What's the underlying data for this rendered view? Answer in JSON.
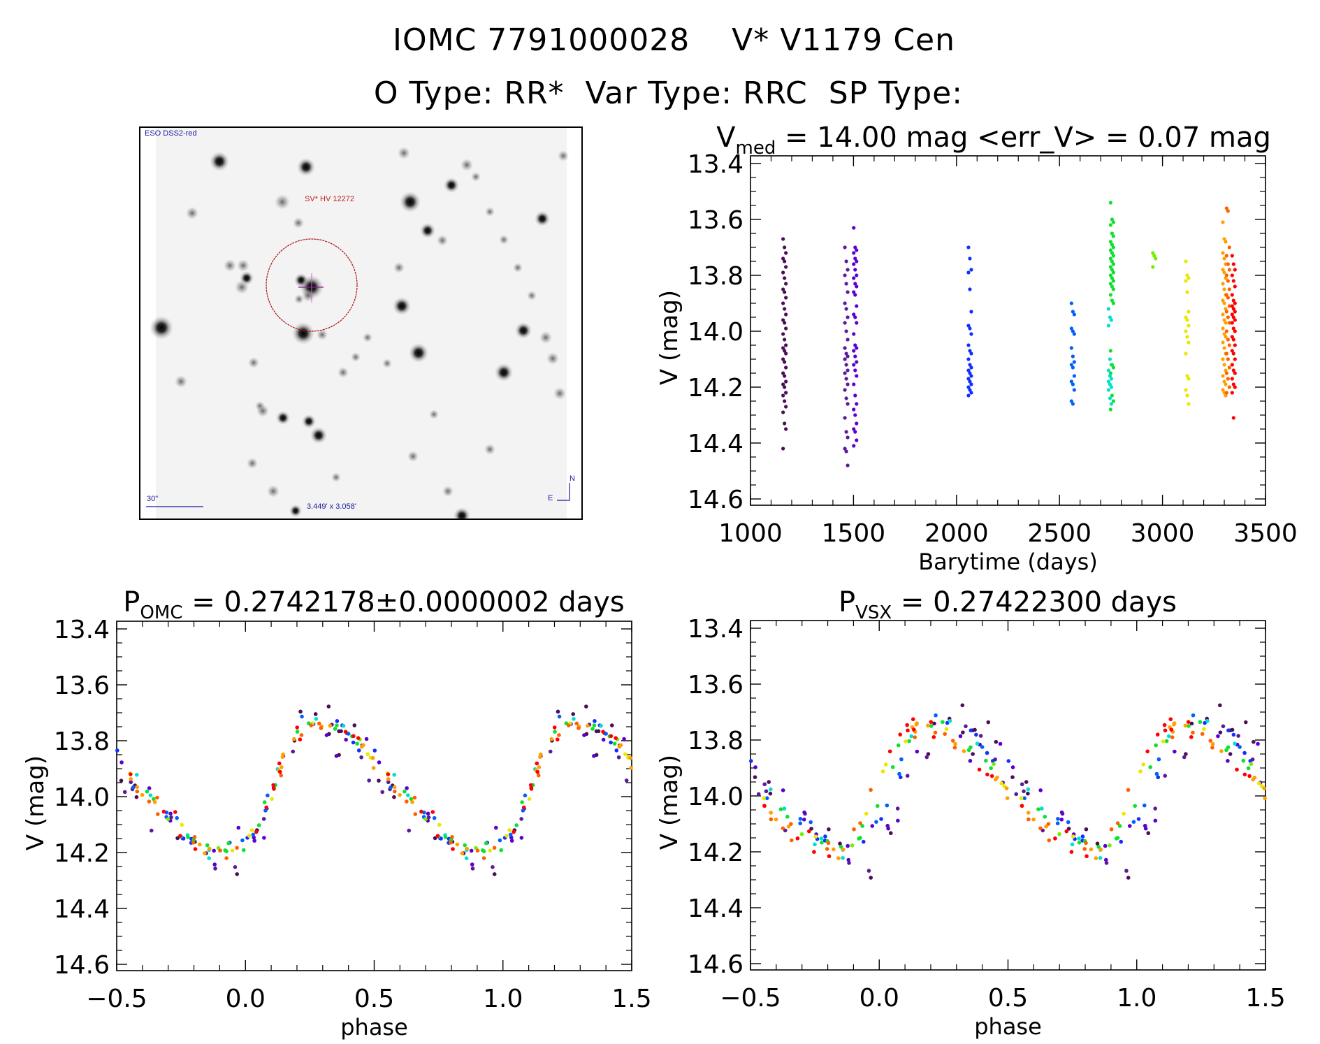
{
  "header": {
    "line1": "IOMC 7791000028    V* V1179 Cen",
    "line2": "O Type: RR*  Var Type: RRC  SP Type:"
  },
  "finder_chart": {
    "survey_label": "ESO DSS2-red",
    "object_label": "SV* HV 12272",
    "scale_label": "30\"",
    "fov_label": "3.449' x 3.058'",
    "north_label": "N",
    "east_label": "E",
    "circle_color": "#b01010",
    "label_color": "#1a1aa0"
  },
  "season_colors": [
    "#4a0f55",
    "#5b1a9a",
    "#5a00d0",
    "#1030ff",
    "#0060ff",
    "#00e0d0",
    "#10e030",
    "#70f000",
    "#e8e800",
    "#ffa000",
    "#ff6000",
    "#ff0000"
  ],
  "chart_data": [
    {
      "id": "lightcurve",
      "type": "scatter",
      "title_main": "V",
      "title_sub": "med",
      "title_rest": " = 14.00 mag <err_V> = 0.07 mag",
      "xlabel": "Barytime (days)",
      "ylabel": "V (mag)",
      "xlim": [
        1000,
        3500
      ],
      "ylim": [
        13.3725,
        14.6225
      ],
      "y_inverted": true,
      "xticks": [
        1000,
        1500,
        2000,
        2500,
        3000,
        3500
      ],
      "xtick_labels": [
        "1000",
        "1500",
        "2000",
        "2500",
        "3000",
        "3500"
      ],
      "yticks": [
        13.4,
        13.6,
        13.8,
        14.0,
        14.2,
        14.4,
        14.6
      ],
      "ytick_labels": [
        "13.4",
        "13.6",
        "13.8",
        "14.0",
        "14.2",
        "14.4",
        "14.6"
      ],
      "seasons": [
        {
          "t": 1165,
          "color_index": 0,
          "mags": [
            13.67,
            13.7,
            13.72,
            13.74,
            13.75,
            13.77,
            13.79,
            13.81,
            13.83,
            13.85,
            13.86,
            13.88,
            13.9,
            13.92,
            13.94,
            13.96,
            13.97,
            13.99,
            14.01,
            14.03,
            14.05,
            14.06,
            14.07,
            14.08,
            14.1,
            14.11,
            14.13,
            14.15,
            14.16,
            14.18,
            14.19,
            14.2,
            14.22,
            14.23,
            14.25,
            14.27,
            14.29,
            14.33,
            14.35,
            14.42
          ]
        },
        {
          "t": 1465,
          "color_index": 1,
          "mags": [
            13.7,
            13.75,
            13.78,
            13.8,
            13.83,
            13.86,
            13.9,
            13.92,
            13.95,
            13.97,
            14.0,
            14.03,
            14.06,
            14.08,
            14.09,
            14.1,
            14.12,
            14.14,
            14.15,
            14.17,
            14.19,
            14.21,
            14.24,
            14.26,
            14.31,
            14.36,
            14.38,
            14.42,
            14.43,
            14.48
          ]
        },
        {
          "t": 1508,
          "color_index": 2,
          "mags": [
            13.63,
            13.7,
            13.71,
            13.72,
            13.74,
            13.75,
            13.76,
            13.78,
            13.8,
            13.81,
            13.83,
            13.84,
            13.86,
            13.87,
            13.91,
            13.94,
            13.95,
            13.97,
            14.01,
            14.05,
            14.06,
            14.07,
            14.09,
            14.11,
            14.12,
            14.14,
            14.16,
            14.19,
            14.23,
            14.26,
            14.28,
            14.3,
            14.33,
            14.35,
            14.36,
            14.39,
            14.41
          ]
        },
        {
          "t": 2065,
          "color_index": 3,
          "mags": [
            13.7,
            13.74,
            13.78,
            13.79,
            13.85,
            13.93,
            13.98,
            13.99,
            14.01,
            14.05,
            14.07,
            14.08,
            14.1,
            14.12,
            14.13,
            14.14,
            14.15,
            14.16,
            14.17,
            14.18,
            14.19,
            14.2,
            14.21,
            14.22,
            14.23
          ]
        },
        {
          "t": 2565,
          "color_index": 4,
          "mags": [
            13.9,
            13.93,
            13.94,
            13.99,
            14.0,
            14.01,
            14.06,
            14.09,
            14.11,
            14.12,
            14.13,
            14.16,
            14.18,
            14.19,
            14.21,
            14.25,
            14.26
          ]
        },
        {
          "t": 2745,
          "color_index": 5,
          "mags": [
            13.92,
            13.95,
            13.96,
            13.98,
            14.1,
            14.12,
            14.14,
            14.16,
            14.17,
            14.18,
            14.19,
            14.2,
            14.21,
            14.24,
            14.26
          ]
        },
        {
          "t": 2755,
          "color_index": 6,
          "mags": [
            13.54,
            13.6,
            13.61,
            13.62,
            13.65,
            13.66,
            13.68,
            13.69,
            13.7,
            13.71,
            13.72,
            13.73,
            13.74,
            13.75,
            13.76,
            13.77,
            13.78,
            13.79,
            13.8,
            13.81,
            13.82,
            13.83,
            13.84,
            13.85,
            13.87,
            13.89,
            13.9,
            14.07,
            14.12,
            14.13,
            14.15,
            14.23,
            14.25,
            14.28
          ]
        },
        {
          "t": 2960,
          "color_index": 7,
          "mags": [
            13.72,
            13.73,
            13.74,
            13.77
          ]
        },
        {
          "t": 3120,
          "color_index": 8,
          "mags": [
            13.75,
            13.8,
            13.81,
            13.82,
            13.86,
            13.93,
            13.95,
            13.96,
            13.98,
            14.0,
            14.02,
            14.04,
            14.08,
            14.16,
            14.17,
            14.21,
            14.23,
            14.26
          ]
        },
        {
          "t": 3300,
          "color_index": 9,
          "mags": [
            13.61,
            13.67,
            13.68,
            13.72,
            13.74,
            13.76,
            13.78,
            13.79,
            13.81,
            13.83,
            13.85,
            13.87,
            13.89,
            13.9,
            13.92,
            13.94,
            13.96,
            13.97,
            13.99,
            14.01,
            14.02,
            14.04,
            14.06,
            14.08,
            14.1,
            14.12,
            14.14,
            14.16,
            14.18,
            14.19,
            14.21,
            14.22,
            14.23
          ]
        },
        {
          "t": 3318,
          "color_index": 10,
          "mags": [
            13.56,
            13.57,
            13.7,
            13.73,
            13.76,
            13.78,
            13.8,
            13.82,
            13.85,
            13.87,
            13.88,
            13.91,
            13.93,
            13.95,
            13.97,
            14.0,
            14.03,
            14.05,
            14.08,
            14.1,
            14.13,
            14.15,
            14.17,
            14.2,
            14.22
          ]
        },
        {
          "t": 3345,
          "color_index": 11,
          "mags": [
            13.73,
            13.76,
            13.78,
            13.8,
            13.82,
            13.84,
            13.87,
            13.89,
            13.9,
            13.91,
            13.92,
            13.93,
            13.94,
            13.95,
            13.96,
            13.97,
            13.99,
            14.0,
            14.02,
            14.03,
            14.05,
            14.07,
            14.08,
            14.1,
            14.12,
            14.14,
            14.15,
            14.17,
            14.19,
            14.2,
            14.22,
            14.31
          ]
        }
      ]
    },
    {
      "id": "phase_omc",
      "type": "scatter",
      "title_main": "P",
      "title_sub": "OMC",
      "title_rest": " = 0.2742178±0.0000002 days",
      "period_days": 0.2742178,
      "xlabel": "phase",
      "ylabel": "V (mag)",
      "xlim": [
        -0.5,
        1.5
      ],
      "ylim": [
        13.3725,
        14.6225
      ],
      "y_inverted": true,
      "xticks": [
        -0.5,
        0.0,
        0.5,
        1.0,
        1.5
      ],
      "xtick_labels": [
        "−0.5",
        "0.0",
        "0.5",
        "1.0",
        "1.5"
      ],
      "yticks": [
        13.4,
        13.6,
        13.8,
        14.0,
        14.2,
        14.4,
        14.6
      ],
      "ytick_labels": [
        "13.4",
        "13.6",
        "13.8",
        "14.0",
        "14.2",
        "14.4",
        "14.6"
      ],
      "curve": {
        "phase": [
          0.0,
          0.05,
          0.1,
          0.15,
          0.2,
          0.25,
          0.3,
          0.35,
          0.4,
          0.45,
          0.5,
          0.55,
          0.6,
          0.65,
          0.7,
          0.75,
          0.8,
          0.85,
          0.9,
          0.95,
          1.0
        ],
        "mag": [
          14.17,
          14.1,
          14.0,
          13.85,
          13.76,
          13.74,
          13.73,
          13.74,
          13.78,
          13.83,
          13.88,
          13.93,
          13.98,
          14.02,
          14.07,
          14.12,
          14.17,
          14.19,
          14.2,
          14.2,
          14.17
        ]
      },
      "points_per_season": [
        18,
        14,
        16,
        12,
        10,
        9,
        18,
        3,
        9,
        18,
        14,
        16
      ]
    },
    {
      "id": "phase_vsx",
      "type": "scatter",
      "title_main": "P",
      "title_sub": "VSX",
      "title_rest": " = 0.27422300 days",
      "period_days": 0.274223,
      "xlabel": "phase",
      "ylabel": "V (mag)",
      "xlim": [
        -0.5,
        1.5
      ],
      "ylim": [
        13.3725,
        14.6225
      ],
      "y_inverted": true,
      "xticks": [
        -0.5,
        0.0,
        0.5,
        1.0,
        1.5
      ],
      "xtick_labels": [
        "−0.5",
        "0.0",
        "0.5",
        "1.0",
        "1.5"
      ],
      "yticks": [
        13.4,
        13.6,
        13.8,
        14.0,
        14.2,
        14.4,
        14.6
      ],
      "ytick_labels": [
        "13.4",
        "13.6",
        "13.8",
        "14.0",
        "14.2",
        "14.4",
        "14.6"
      ],
      "curve": {
        "phase": [
          0.0,
          0.05,
          0.1,
          0.15,
          0.2,
          0.25,
          0.3,
          0.35,
          0.4,
          0.45,
          0.5,
          0.55,
          0.6,
          0.65,
          0.7,
          0.75,
          0.8,
          0.85,
          0.9,
          0.95,
          1.0
        ],
        "mag": [
          14.05,
          13.93,
          13.84,
          13.78,
          13.75,
          13.73,
          13.76,
          13.8,
          13.85,
          13.9,
          13.95,
          13.99,
          14.03,
          14.07,
          14.11,
          14.15,
          14.17,
          14.19,
          14.21,
          14.15,
          14.05
        ]
      },
      "phase_shift_per_season": [
        0.08,
        0.06,
        0.05,
        0.03,
        0.02,
        0.0,
        -0.02,
        -0.02,
        -0.04,
        -0.05,
        -0.06,
        -0.07
      ],
      "points_per_season": [
        18,
        14,
        16,
        12,
        10,
        9,
        18,
        3,
        9,
        18,
        14,
        16
      ]
    }
  ]
}
